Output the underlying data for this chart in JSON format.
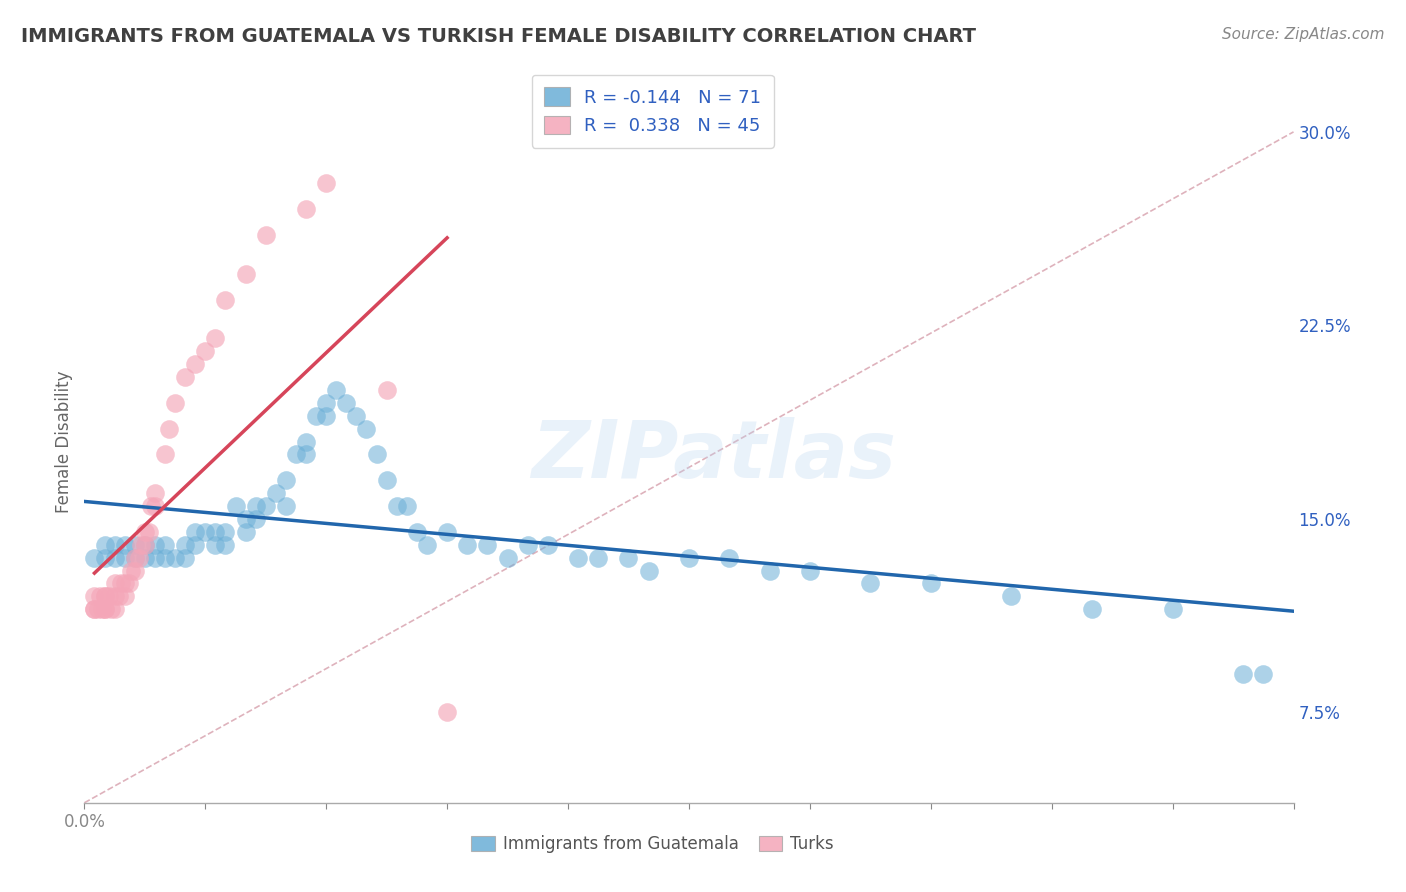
{
  "title": "IMMIGRANTS FROM GUATEMALA VS TURKISH FEMALE DISABILITY CORRELATION CHART",
  "source": "Source: ZipAtlas.com",
  "ylabel": "Female Disability",
  "watermark": "ZIPatlas",
  "xlim": [
    0.0,
    0.6
  ],
  "ylim": [
    0.04,
    0.32
  ],
  "xtick_positions": [
    0.0,
    0.06,
    0.12,
    0.18,
    0.24,
    0.3,
    0.36,
    0.42,
    0.48,
    0.54,
    0.6
  ],
  "xtick_labels_show": {
    "0.0": "0.0%"
  },
  "yticks_right": [
    0.075,
    0.15,
    0.225,
    0.3
  ],
  "ytick_right_labels": [
    "7.5%",
    "15.0%",
    "22.5%",
    "30.0%"
  ],
  "R_blue": -0.144,
  "N_blue": 71,
  "R_pink": 0.338,
  "N_pink": 45,
  "blue_color": "#6aaed6",
  "pink_color": "#f4a6b8",
  "blue_line_color": "#2166ac",
  "pink_line_color": "#d6455a",
  "diagonal_color": "#dbaab5",
  "background_color": "#FFFFFF",
  "grid_color": "#cccccc",
  "title_color": "#404040",
  "source_color": "#888888",
  "legend_text_color": "#3060c0",
  "axis_color": "#aaaaaa",
  "blue_scatter_x": [
    0.005,
    0.01,
    0.01,
    0.015,
    0.015,
    0.02,
    0.02,
    0.025,
    0.025,
    0.03,
    0.03,
    0.035,
    0.035,
    0.04,
    0.04,
    0.045,
    0.05,
    0.05,
    0.055,
    0.055,
    0.06,
    0.065,
    0.065,
    0.07,
    0.07,
    0.075,
    0.08,
    0.08,
    0.085,
    0.085,
    0.09,
    0.095,
    0.1,
    0.1,
    0.105,
    0.11,
    0.11,
    0.115,
    0.12,
    0.12,
    0.125,
    0.13,
    0.135,
    0.14,
    0.145,
    0.15,
    0.155,
    0.16,
    0.165,
    0.17,
    0.18,
    0.19,
    0.2,
    0.21,
    0.22,
    0.23,
    0.245,
    0.255,
    0.27,
    0.28,
    0.3,
    0.32,
    0.34,
    0.36,
    0.39,
    0.42,
    0.46,
    0.5,
    0.54,
    0.575,
    0.585
  ],
  "blue_scatter_y": [
    0.135,
    0.14,
    0.135,
    0.14,
    0.135,
    0.14,
    0.135,
    0.14,
    0.135,
    0.14,
    0.135,
    0.135,
    0.14,
    0.135,
    0.14,
    0.135,
    0.14,
    0.135,
    0.145,
    0.14,
    0.145,
    0.14,
    0.145,
    0.145,
    0.14,
    0.155,
    0.15,
    0.145,
    0.155,
    0.15,
    0.155,
    0.16,
    0.155,
    0.165,
    0.175,
    0.175,
    0.18,
    0.19,
    0.19,
    0.195,
    0.2,
    0.195,
    0.19,
    0.185,
    0.175,
    0.165,
    0.155,
    0.155,
    0.145,
    0.14,
    0.145,
    0.14,
    0.14,
    0.135,
    0.14,
    0.14,
    0.135,
    0.135,
    0.135,
    0.13,
    0.135,
    0.135,
    0.13,
    0.13,
    0.125,
    0.125,
    0.12,
    0.115,
    0.115,
    0.09,
    0.09
  ],
  "pink_scatter_x": [
    0.005,
    0.005,
    0.005,
    0.007,
    0.008,
    0.009,
    0.01,
    0.01,
    0.01,
    0.01,
    0.012,
    0.013,
    0.015,
    0.015,
    0.015,
    0.017,
    0.018,
    0.02,
    0.02,
    0.022,
    0.023,
    0.025,
    0.025,
    0.027,
    0.028,
    0.03,
    0.03,
    0.032,
    0.033,
    0.035,
    0.035,
    0.04,
    0.042,
    0.045,
    0.05,
    0.055,
    0.06,
    0.065,
    0.07,
    0.08,
    0.09,
    0.11,
    0.12,
    0.15,
    0.18
  ],
  "pink_scatter_y": [
    0.115,
    0.12,
    0.115,
    0.115,
    0.12,
    0.115,
    0.115,
    0.12,
    0.115,
    0.12,
    0.12,
    0.115,
    0.12,
    0.115,
    0.125,
    0.12,
    0.125,
    0.125,
    0.12,
    0.125,
    0.13,
    0.13,
    0.135,
    0.135,
    0.14,
    0.14,
    0.145,
    0.145,
    0.155,
    0.155,
    0.16,
    0.175,
    0.185,
    0.195,
    0.205,
    0.21,
    0.215,
    0.22,
    0.235,
    0.245,
    0.26,
    0.27,
    0.28,
    0.2,
    0.075
  ]
}
